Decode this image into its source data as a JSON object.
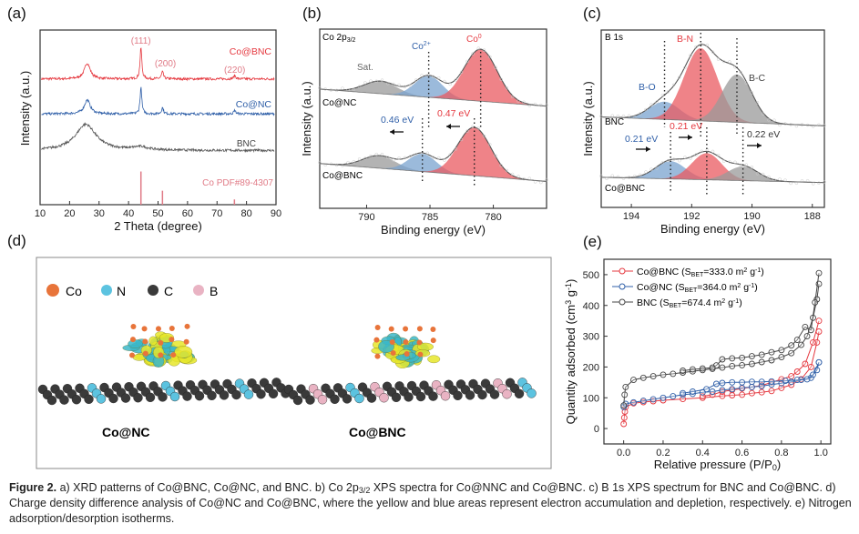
{
  "colors": {
    "red": "#e5383f",
    "blue": "#2f5fa8",
    "gray": "#555555",
    "pink": "#e07a86",
    "fill_red": "#ea5a60",
    "fill_blue": "#7aa3cf",
    "fill_gray": "#9a9a9a",
    "yellow": "#e6e62a",
    "cyan": "#3bb7c9"
  },
  "chart_data": [
    {
      "panel": "(a)",
      "type": "line",
      "xlabel": "2 Theta (degree)",
      "ylabel": "Intensity (a.u.)",
      "xlim": [
        10,
        90
      ],
      "ylim": [
        0,
        100
      ],
      "xticks": [
        10,
        20,
        30,
        40,
        50,
        60,
        70,
        80,
        90
      ],
      "series": [
        {
          "name": "Co@BNC",
          "color": "#e5383f",
          "offset": 72,
          "peaks": [
            [
              26,
              9,
              1.2
            ],
            [
              44.2,
              18,
              0.35
            ],
            [
              51.5,
              4,
              0.4
            ],
            [
              76,
              2,
              0.4
            ]
          ]
        },
        {
          "name": "Co@NC",
          "color": "#2f5fa8",
          "offset": 52,
          "peaks": [
            [
              26,
              8,
              1.2
            ],
            [
              44.2,
              15,
              0.35
            ],
            [
              51.5,
              3.5,
              0.4
            ],
            [
              76,
              2,
              0.4
            ]
          ]
        },
        {
          "name": "BNC",
          "color": "#555555",
          "offset": 31,
          "peaks": [
            [
              25.5,
              15,
              4.2
            ],
            [
              44,
              1.8,
              3
            ]
          ]
        }
      ],
      "reference": {
        "name": "Co PDF#89-4307",
        "lines": [
          [
            44.2,
            19
          ],
          [
            51.5,
            8
          ],
          [
            75.9,
            3
          ]
        ]
      },
      "annotations": [
        "(111)",
        "(200)",
        "(220)"
      ]
    },
    {
      "panel": "(b)",
      "type": "area",
      "title": "Co 2p",
      "title_sub": "3/2",
      "xlabel": "Binding energy (eV)",
      "ylabel": "Intensity (a.u.)",
      "xlim": [
        793.7,
        775.8
      ],
      "ylim": [
        0,
        100
      ],
      "xticks": [
        790,
        785,
        780
      ],
      "spectra": [
        {
          "name": "Co@NC",
          "baseline": [
            66.5,
            57
          ],
          "peaks": [
            {
              "name": "Sat.",
              "center": 788.9,
              "height": 7,
              "sigma": 1.3,
              "color": "gray"
            },
            {
              "name": "Co2+",
              "center": 785.1,
              "height": 12,
              "sigma": 1.1,
              "color": "blue"
            },
            {
              "name": "Co0",
              "center": 781.0,
              "height": 29,
              "sigma": 1.3,
              "color": "red"
            }
          ]
        },
        {
          "name": "Co@BNC",
          "baseline": [
            25,
            15
          ],
          "peaks": [
            {
              "name": "Sat.",
              "center": 789,
              "height": 7,
              "sigma": 1.3,
              "color": "gray"
            },
            {
              "name": "Co2+",
              "center": 785.6,
              "height": 10,
              "sigma": 1.1,
              "color": "blue"
            },
            {
              "name": "Co0",
              "center": 781.5,
              "height": 27,
              "sigma": 1.3,
              "color": "red"
            }
          ]
        }
      ],
      "labels": {
        "sat": "Sat.",
        "co2": "Co",
        "co2_sup": "2+",
        "co0": "Co",
        "co0_sup": "0",
        "shift_blue": "0.46 eV",
        "shift_red": "0.47 eV"
      }
    },
    {
      "panel": "(c)",
      "type": "area",
      "title": "B 1s",
      "xlabel": "Binding energy (eV)",
      "ylabel": "Intensity (a.u.)",
      "xlim": [
        195,
        187.6
      ],
      "ylim": [
        0,
        100
      ],
      "xticks": [
        194,
        192,
        190,
        188
      ],
      "spectra": [
        {
          "name": "BNC",
          "baseline": [
            51,
            46
          ],
          "peaks": [
            {
              "name": "B-O",
              "center": 192.9,
              "height": 10,
              "sigma": 0.5,
              "color": "blue"
            },
            {
              "name": "B-N",
              "center": 191.7,
              "height": 41,
              "sigma": 0.55,
              "color": "red"
            },
            {
              "name": "B-C",
              "center": 190.5,
              "height": 27,
              "sigma": 0.5,
              "color": "gray"
            }
          ]
        },
        {
          "name": "Co@BNC",
          "baseline": [
            17,
            14
          ],
          "peaks": [
            {
              "name": "B-O",
              "center": 192.7,
              "height": 10,
              "sigma": 0.5,
              "color": "blue"
            },
            {
              "name": "B-N",
              "center": 191.5,
              "height": 15,
              "sigma": 0.5,
              "color": "red"
            },
            {
              "name": "B-C",
              "center": 190.3,
              "height": 8,
              "sigma": 0.5,
              "color": "gray"
            }
          ]
        }
      ],
      "labels": {
        "bo": "B-O",
        "bn": "B-N",
        "bc": "B-C",
        "shift_bo": "0.21 eV",
        "shift_bn": "0.21 eV",
        "shift_bc": "0.22 eV"
      }
    },
    {
      "panel": "(e)",
      "type": "scatter",
      "xlabel": "Relative pressure (P/P",
      "xlabel_sub": "0",
      "ylabel": "Quantity adsorbed (cm",
      "ylabel_sup": "3",
      "ylabel_end": " g",
      "ylabel_sup2": "-1",
      "xlim": [
        -0.1,
        1.05
      ],
      "ylim": [
        -50,
        550
      ],
      "xticks": [
        0.0,
        0.2,
        0.4,
        0.6,
        0.8,
        1.0
      ],
      "yticks": [
        0,
        100,
        200,
        300,
        400,
        500
      ],
      "legend": "top-left",
      "series": [
        {
          "name": "Co@BNC",
          "label": "Co@BNC (S",
          "sub": "BET",
          "value": "=333.0 m",
          "sup": "2",
          "unit": " g",
          "sup2": "-1",
          "end": ")",
          "color": "#e5383f",
          "ads": {
            "x": [
              0,
              0.003,
              0.006,
              0.01,
              0.05,
              0.1,
              0.15,
              0.2,
              0.3,
              0.4,
              0.5,
              0.55,
              0.6,
              0.65,
              0.7,
              0.75,
              0.8,
              0.85,
              0.9,
              0.95,
              0.98,
              0.99
            ],
            "y": [
              15,
              35,
              55,
              70,
              82,
              86,
              89,
              92,
              96,
              100,
              106,
              108,
              110,
              115,
              118,
              122,
              132,
              142,
              160,
              200,
              280,
              315
            ]
          },
          "des": {
            "x": [
              0.99,
              0.96,
              0.92,
              0.88,
              0.85,
              0.8,
              0.75,
              0.7,
              0.65,
              0.6,
              0.55,
              0.5,
              0.45,
              0.4
            ],
            "y": [
              350,
              280,
              210,
              185,
              170,
              160,
              150,
              140,
              135,
              130,
              125,
              120,
              110,
              105
            ]
          }
        },
        {
          "name": "Co@NC",
          "label": "Co@NC (S",
          "sub": "BET",
          "value": "=364.0 m",
          "sup": "2",
          "unit": " g",
          "sup2": "-1",
          "end": ")",
          "color": "#2f5fa8",
          "ads": {
            "x": [
              0,
              0.01,
              0.05,
              0.1,
              0.15,
              0.2,
              0.25,
              0.3,
              0.35,
              0.4,
              0.45,
              0.5,
              0.55,
              0.6,
              0.65,
              0.7,
              0.75,
              0.8,
              0.85,
              0.9,
              0.95,
              0.98,
              0.99
            ],
            "y": [
              70,
              80,
              85,
              90,
              95,
              100,
              105,
              110,
              113,
              118,
              120,
              125,
              128,
              132,
              135,
              138,
              143,
              147,
              152,
              158,
              165,
              190,
              215
            ]
          },
          "des": {
            "x": [
              0.99,
              0.96,
              0.93,
              0.88,
              0.82,
              0.75,
              0.7,
              0.65,
              0.6,
              0.55,
              0.5,
              0.47,
              0.42,
              0.35,
              0.3
            ],
            "y": [
              215,
              175,
              160,
              158,
              155,
              153,
              152,
              152,
              150,
              150,
              148,
              145,
              128,
              120,
              115
            ]
          }
        },
        {
          "name": "BNC",
          "label": "BNC (S",
          "sub": "BET",
          "value": "=674.4 m",
          "sup": "2",
          "unit": " g",
          "sup2": "-1",
          "end": ")",
          "color": "#444444",
          "ads": {
            "x": [
              0,
              0.005,
              0.01,
              0.05,
              0.1,
              0.15,
              0.2,
              0.25,
              0.3,
              0.35,
              0.4,
              0.45,
              0.5,
              0.55,
              0.6,
              0.65,
              0.7,
              0.75,
              0.8,
              0.85,
              0.9,
              0.93,
              0.96,
              0.98,
              0.99
            ],
            "y": [
              75,
              110,
              135,
              158,
              165,
              170,
              175,
              178,
              182,
              186,
              190,
              194,
              198,
              203,
              206,
              210,
              216,
              222,
              232,
              245,
              272,
              300,
              360,
              420,
              470
            ]
          },
          "des": {
            "x": [
              0.99,
              0.97,
              0.95,
              0.92,
              0.88,
              0.85,
              0.8,
              0.75,
              0.7,
              0.65,
              0.6,
              0.55,
              0.5,
              0.47,
              0.45,
              0.4,
              0.35,
              0.3
            ],
            "y": [
              505,
              410,
              320,
              330,
              288,
              270,
              255,
              248,
              240,
              235,
              230,
              228,
              225,
              205,
              198,
              195,
              192,
              188
            ]
          }
        }
      ]
    }
  ],
  "panel_d": {
    "label": "(d)",
    "legend": [
      "Co",
      "N",
      "C",
      "B"
    ],
    "legend_colors": [
      "#e8743a",
      "#5cc3e0",
      "#3a3a3a",
      "#e9b3c3"
    ],
    "structures": [
      "Co@NC",
      "Co@BNC"
    ]
  },
  "panel_labels": [
    "(a)",
    "(b)",
    "(c)",
    "(e)"
  ],
  "caption": {
    "lead": "Figure 2.",
    "text_a": " a) XRD patterns of Co@BNC, Co@NC, and BNC. b) Co 2p",
    "sub": "3/2",
    "text_b": " XPS spectra for Co@NNC and Co@BNC. c) B 1s XPS spectrum for BNC and Co@BNC. d) Charge density difference analysis of Co@NC and Co@BNC, where the yellow and blue areas represent electron accumulation and depletion, respectively. e) Nitrogen adsorption/desorption isotherms."
  }
}
